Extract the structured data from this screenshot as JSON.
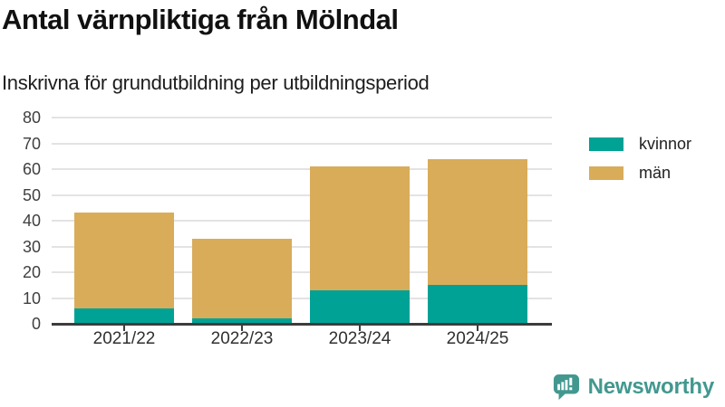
{
  "header": {
    "title": "Antal värnpliktiga från Mölndal",
    "subtitle": "Inskrivna för grundutbildning per utbildningsperiod"
  },
  "chart_data": {
    "type": "bar",
    "stacked": true,
    "categories": [
      "2021/22",
      "2022/23",
      "2023/24",
      "2024/25"
    ],
    "series": [
      {
        "name": "kvinnor",
        "color": "#00A296",
        "values": [
          6,
          2,
          13,
          15
        ]
      },
      {
        "name": "män",
        "color": "#D9AC5A",
        "values": [
          37,
          31,
          48,
          49
        ]
      }
    ],
    "totals": [
      43,
      33,
      61,
      64
    ],
    "title": "Antal värnpliktiga från Mölndal",
    "subtitle": "Inskrivna för grundutbildning per utbildningsperiod",
    "xlabel": "",
    "ylabel": "",
    "ylim": [
      0,
      80
    ],
    "ytick_step": 10,
    "grid": true,
    "legend_position": "right"
  },
  "footer": {
    "brand": "Newsworthy",
    "brand_color": "#42988F"
  },
  "colors": {
    "axis_line": "#3c3c3c",
    "gridline": "#e3e3e3",
    "tick_label": "#3f3f3f"
  }
}
